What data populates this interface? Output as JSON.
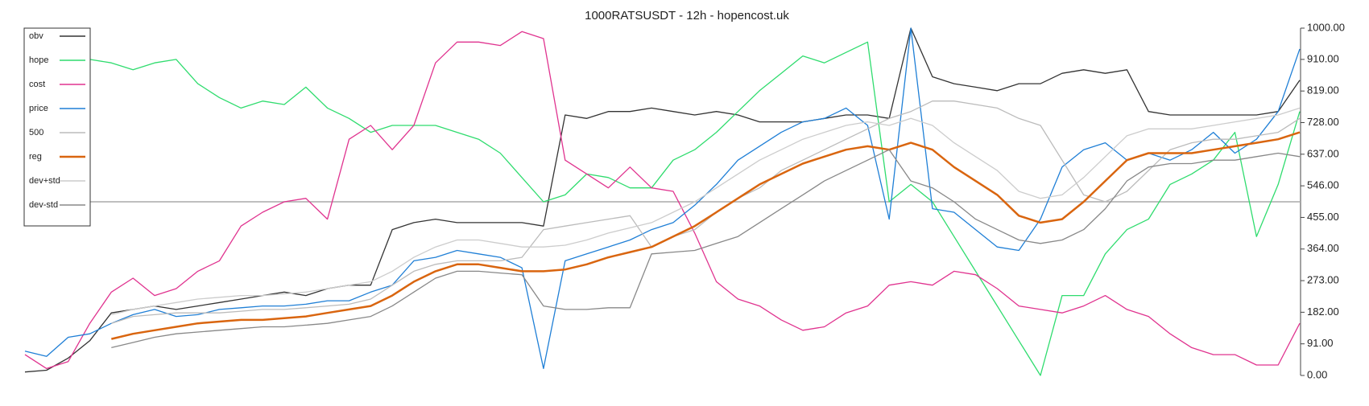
{
  "chart_data": {
    "type": "line",
    "title": "1000RATSUSDT - 12h - hopencost.uk",
    "ylim": [
      0,
      1000
    ],
    "yticks": [
      {
        "value": 0,
        "label": "0.00"
      },
      {
        "value": 91,
        "label": "91.00"
      },
      {
        "value": 182,
        "label": "182.00"
      },
      {
        "value": 273,
        "label": "273.00"
      },
      {
        "value": 364,
        "label": "364.00"
      },
      {
        "value": 455,
        "label": "455.00"
      },
      {
        "value": 546,
        "label": "546.00"
      },
      {
        "value": 637,
        "label": "637.00"
      },
      {
        "value": 728,
        "label": "728.00"
      },
      {
        "value": 819,
        "label": "819.00"
      },
      {
        "value": 910,
        "label": "910.00"
      },
      {
        "value": 1000,
        "label": "1000.00"
      }
    ],
    "legend": "upper left",
    "reference_line": {
      "value": 500,
      "color": "#aaaaaa"
    },
    "series": [
      {
        "name": "obv",
        "color": "#333333",
        "values": [
          10,
          15,
          50,
          100,
          180,
          190,
          200,
          190,
          200,
          210,
          220,
          230,
          240,
          230,
          250,
          260,
          260,
          420,
          440,
          450,
          440,
          440,
          440,
          440,
          430,
          750,
          740,
          760,
          760,
          770,
          760,
          750,
          760,
          750,
          730,
          730,
          730,
          740,
          750,
          750,
          740,
          1000,
          860,
          840,
          830,
          820,
          840,
          840,
          870,
          880,
          870,
          880,
          760,
          750,
          750,
          750,
          750,
          750,
          760,
          850
        ]
      },
      {
        "name": "hope",
        "color": "#2fdc6e",
        "values": [
          null,
          null,
          null,
          910,
          900,
          880,
          900,
          910,
          840,
          800,
          770,
          790,
          780,
          830,
          770,
          740,
          700,
          720,
          720,
          720,
          700,
          680,
          640,
          570,
          500,
          520,
          580,
          570,
          540,
          540,
          620,
          650,
          700,
          760,
          820,
          870,
          920,
          900,
          930,
          960,
          500,
          550,
          500,
          400,
          300,
          200,
          100,
          0,
          230,
          230,
          350,
          420,
          450,
          550,
          580,
          620,
          700,
          400,
          550,
          760
        ]
      },
      {
        "name": "cost",
        "color": "#e0338f",
        "values": [
          60,
          20,
          40,
          150,
          240,
          280,
          230,
          250,
          300,
          330,
          430,
          470,
          500,
          510,
          450,
          680,
          720,
          650,
          720,
          900,
          960,
          960,
          950,
          990,
          970,
          620,
          580,
          540,
          600,
          540,
          530,
          410,
          270,
          220,
          200,
          160,
          130,
          140,
          180,
          200,
          260,
          270,
          260,
          300,
          290,
          250,
          200,
          190,
          180,
          200,
          230,
          190,
          170,
          120,
          80,
          60,
          60,
          30,
          30,
          150
        ]
      },
      {
        "name": "price",
        "color": "#1f7fd6",
        "values": [
          70,
          55,
          110,
          120,
          150,
          175,
          190,
          170,
          175,
          190,
          195,
          200,
          200,
          205,
          215,
          215,
          240,
          260,
          330,
          340,
          360,
          350,
          340,
          310,
          20,
          330,
          350,
          370,
          390,
          420,
          440,
          490,
          550,
          620,
          660,
          700,
          730,
          740,
          770,
          720,
          450,
          1000,
          480,
          470,
          420,
          370,
          360,
          450,
          600,
          650,
          670,
          620,
          640,
          620,
          650,
          700,
          640,
          680,
          760,
          940
        ]
      },
      {
        "name": "500",
        "color": "#bbbbbb",
        "values": [
          null,
          null,
          null,
          null,
          150,
          170,
          175,
          180,
          180,
          180,
          185,
          190,
          190,
          195,
          200,
          205,
          220,
          260,
          300,
          320,
          330,
          330,
          330,
          340,
          420,
          430,
          440,
          450,
          460,
          370,
          400,
          420,
          470,
          510,
          540,
          590,
          620,
          650,
          680,
          710,
          740,
          760,
          790,
          790,
          780,
          770,
          740,
          720,
          620,
          520,
          500,
          530,
          590,
          650,
          670,
          680,
          680,
          690,
          700,
          740
        ]
      },
      {
        "name": "reg",
        "color": "#d9650f",
        "values": [
          null,
          null,
          null,
          null,
          105,
          120,
          130,
          140,
          150,
          155,
          160,
          160,
          165,
          170,
          180,
          190,
          200,
          230,
          270,
          300,
          320,
          320,
          310,
          300,
          300,
          305,
          320,
          340,
          355,
          370,
          400,
          430,
          470,
          510,
          550,
          580,
          610,
          630,
          650,
          660,
          650,
          670,
          650,
          600,
          560,
          520,
          460,
          440,
          450,
          500,
          560,
          620,
          640,
          640,
          640,
          650,
          660,
          670,
          680,
          700
        ]
      },
      {
        "name": "dev+std",
        "color": "#cccccc",
        "values": [
          null,
          null,
          null,
          null,
          175,
          190,
          200,
          210,
          220,
          225,
          230,
          230,
          235,
          240,
          250,
          260,
          270,
          300,
          340,
          370,
          390,
          390,
          380,
          370,
          370,
          375,
          390,
          410,
          425,
          440,
          470,
          500,
          540,
          580,
          620,
          650,
          680,
          700,
          720,
          730,
          720,
          740,
          720,
          670,
          630,
          590,
          530,
          510,
          520,
          570,
          630,
          690,
          710,
          710,
          710,
          720,
          730,
          740,
          750,
          770
        ]
      },
      {
        "name": "dev-std",
        "color": "#888888",
        "values": [
          null,
          null,
          null,
          null,
          80,
          95,
          110,
          120,
          125,
          130,
          135,
          140,
          140,
          145,
          150,
          160,
          170,
          200,
          240,
          280,
          300,
          300,
          295,
          290,
          200,
          190,
          190,
          195,
          195,
          350,
          355,
          360,
          380,
          400,
          440,
          480,
          520,
          560,
          590,
          620,
          650,
          560,
          540,
          500,
          450,
          420,
          390,
          380,
          390,
          420,
          480,
          560,
          600,
          610,
          610,
          620,
          620,
          630,
          640,
          630
        ]
      }
    ]
  }
}
